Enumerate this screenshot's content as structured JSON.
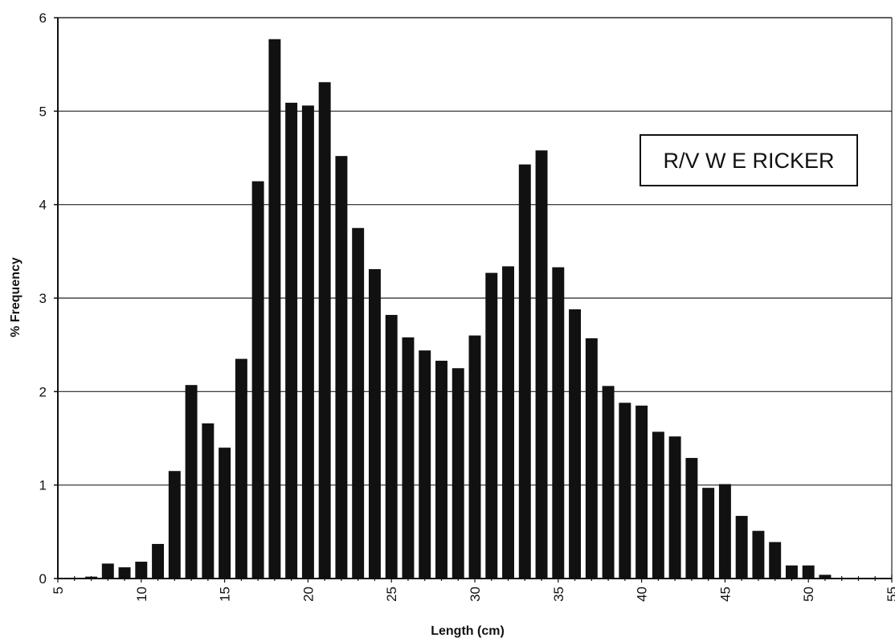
{
  "chart_data": {
    "type": "bar",
    "title": "",
    "xlabel": "Length (cm)",
    "ylabel": "% Frequency",
    "xlim": [
      5,
      55
    ],
    "ylim": [
      0,
      6
    ],
    "x_ticks": [
      5,
      10,
      15,
      20,
      25,
      30,
      35,
      40,
      45,
      50,
      55
    ],
    "y_ticks": [
      0,
      1,
      2,
      3,
      4,
      5,
      6
    ],
    "grid": {
      "horizontal": true,
      "vertical": false
    },
    "legend": "none",
    "annotation": "R/V W E RICKER",
    "bar_color": "#111111",
    "x": [
      7,
      8,
      9,
      10,
      11,
      12,
      13,
      14,
      15,
      16,
      17,
      18,
      19,
      20,
      21,
      22,
      23,
      24,
      25,
      26,
      27,
      28,
      29,
      30,
      31,
      32,
      33,
      34,
      35,
      36,
      37,
      38,
      39,
      40,
      41,
      42,
      43,
      44,
      45,
      46,
      47,
      48,
      49,
      50,
      51
    ],
    "values": [
      0.02,
      0.16,
      0.12,
      0.18,
      0.37,
      1.15,
      2.07,
      1.66,
      1.4,
      2.35,
      4.25,
      5.77,
      5.09,
      5.06,
      5.31,
      4.52,
      3.75,
      3.31,
      2.82,
      2.58,
      2.44,
      2.33,
      2.25,
      2.6,
      3.27,
      3.34,
      4.43,
      4.58,
      3.33,
      2.88,
      2.57,
      2.06,
      1.88,
      1.85,
      1.57,
      1.52,
      1.29,
      0.97,
      1.01,
      0.67,
      0.51,
      0.39,
      0.14,
      0.14,
      0.04
    ]
  }
}
